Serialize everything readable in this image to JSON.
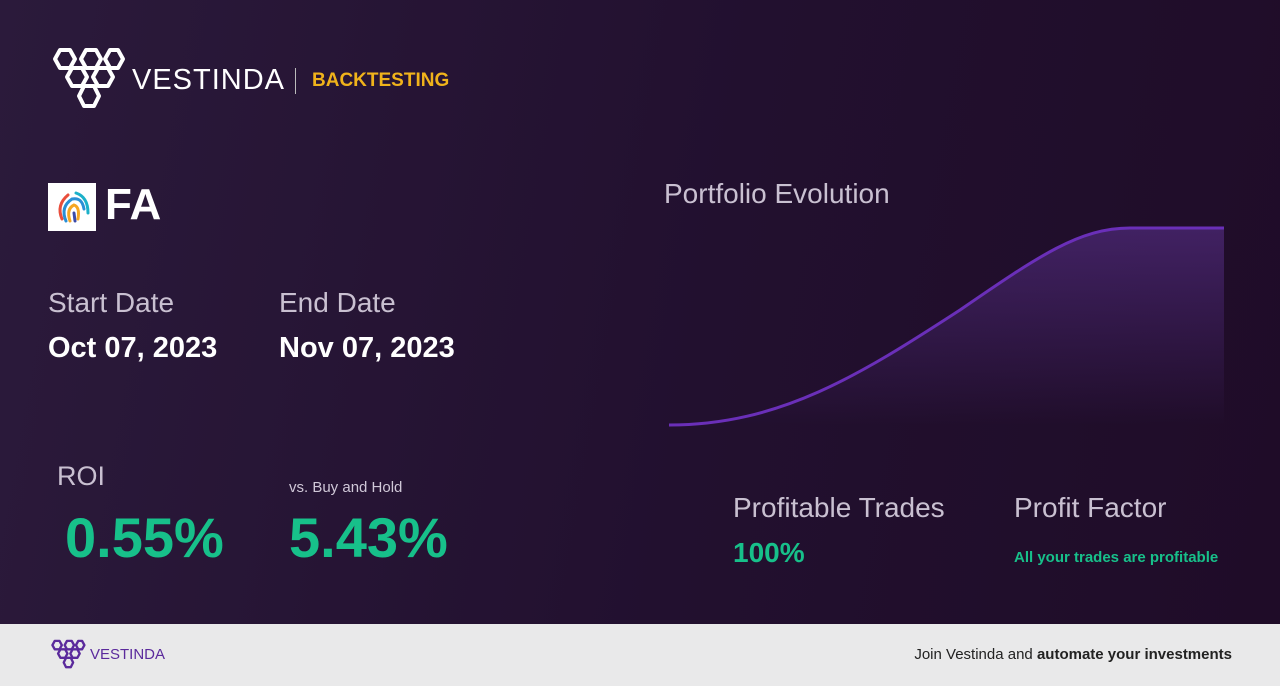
{
  "header": {
    "brand": "VESTINDA",
    "section": "BACKTESTING"
  },
  "asset": {
    "symbol": "FA"
  },
  "dates": {
    "start_label": "Start Date",
    "start": "Oct 07, 2023",
    "end_label": "End Date",
    "end": "Nov 07, 2023"
  },
  "roi": {
    "label": "ROI",
    "value": "0.55%",
    "compare_label": "vs. Buy and Hold",
    "compare_value": "5.43%"
  },
  "chart": {
    "title": "Portfolio Evolution"
  },
  "stats": {
    "trades_label": "Profitable Trades",
    "trades_value": "100%",
    "factor_label": "Profit Factor",
    "factor_value": "All your trades are profitable"
  },
  "footer": {
    "brand": "VESTINDA",
    "cta": "Join Vestinda and",
    "cta_bold": "automate your investments"
  }
}
